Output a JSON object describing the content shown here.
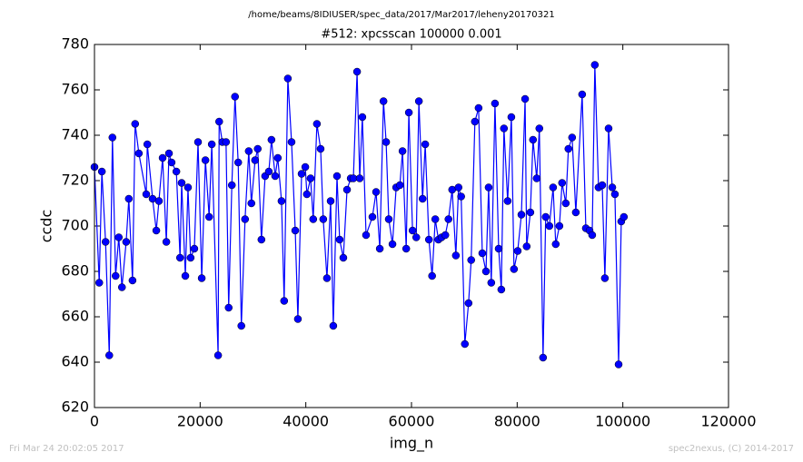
{
  "chart_data": {
    "type": "line",
    "suptitle": "/home/beams/8IDIUSER/spec_data/2017/Mar2017/leheny20170321",
    "title": "#512: xpcsscan 100000 0.001",
    "x_label": "img_n",
    "y_label": "ccdc",
    "footer_left": "Fri Mar 24 20:02:05 2017",
    "footer_right": "spec2nexus, (C) 2014-2017",
    "color": "#0000ff",
    "marker": true,
    "x": [
      0,
      900,
      1400,
      2100,
      2800,
      3400,
      4000,
      4600,
      5200,
      6000,
      6500,
      7200,
      7700,
      8400,
      9800,
      10000,
      11000,
      11700,
      12200,
      12900,
      13600,
      14100,
      14600,
      15500,
      16200,
      16500,
      17200,
      17700,
      18200,
      18900,
      19600,
      20300,
      21000,
      21700,
      22200,
      23400,
      23600,
      24200,
      24900,
      25400,
      26000,
      26600,
      27200,
      27800,
      28500,
      29200,
      29700,
      30400,
      30900,
      31600,
      32300,
      33000,
      33500,
      34200,
      34700,
      35400,
      35900,
      36600,
      37300,
      38000,
      38500,
      39200,
      39900,
      40200,
      40900,
      41400,
      42100,
      42800,
      43300,
      44000,
      44700,
      45200,
      45900,
      46400,
      47100,
      47800,
      48500,
      49000,
      49700,
      50200,
      50700,
      51400,
      52600,
      53300,
      54000,
      54700,
      55200,
      55700,
      56400,
      57100,
      57800,
      58300,
      59000,
      59500,
      60200,
      60900,
      61400,
      62100,
      62600,
      63300,
      63900,
      64500,
      65100,
      65700,
      66400,
      67000,
      67700,
      68400,
      68900,
      69400,
      70100,
      70800,
      71300,
      72000,
      72700,
      73400,
      74100,
      74600,
      75100,
      75800,
      76500,
      77000,
      77500,
      78200,
      78900,
      79400,
      80100,
      80800,
      81500,
      81800,
      82500,
      83000,
      83700,
      84200,
      84900,
      85400,
      86100,
      86800,
      87300,
      88000,
      88500,
      89200,
      89700,
      90400,
      91100,
      92300,
      93000,
      93700,
      94200,
      94700,
      95400,
      96100,
      96600,
      97300,
      98000,
      98500,
      99200,
      99700,
      100200
    ],
    "values": [
      726,
      675,
      724,
      693,
      643,
      739,
      678,
      695,
      673,
      693,
      712,
      676,
      745,
      732,
      714,
      736,
      712,
      698,
      711,
      730,
      693,
      732,
      728,
      724,
      686,
      719,
      678,
      717,
      686,
      690,
      737,
      677,
      729,
      704,
      736,
      643,
      746,
      737,
      737,
      664,
      718,
      757,
      728,
      656,
      703,
      733,
      710,
      729,
      734,
      694,
      722,
      724,
      738,
      722,
      730,
      711,
      667,
      765,
      737,
      698,
      659,
      723,
      726,
      714,
      721,
      703,
      745,
      734,
      703,
      677,
      711,
      656,
      722,
      694,
      686,
      716,
      721,
      721,
      768,
      721,
      748,
      696,
      704,
      715,
      690,
      755,
      737,
      703,
      692,
      717,
      718,
      733,
      690,
      750,
      698,
      695,
      755,
      712,
      736,
      694,
      678,
      703,
      694,
      695,
      696,
      703,
      716,
      687,
      717,
      713,
      648,
      666,
      685,
      746,
      752,
      688,
      680,
      717,
      675,
      754,
      690,
      672,
      743,
      711,
      748,
      681,
      689,
      705,
      756,
      691,
      706,
      738,
      721,
      743,
      642,
      704,
      700,
      717,
      692,
      700,
      719,
      710,
      734,
      739,
      706,
      758,
      699,
      698,
      696,
      771,
      717,
      718,
      677,
      743,
      717,
      714,
      639,
      702,
      704
    ],
    "xlim": [
      0,
      120000
    ],
    "xticks": [
      0,
      20000,
      40000,
      60000,
      80000,
      100000,
      120000
    ],
    "ylim": [
      620,
      780
    ],
    "yticks": [
      620,
      640,
      660,
      680,
      700,
      720,
      740,
      760,
      780
    ]
  }
}
